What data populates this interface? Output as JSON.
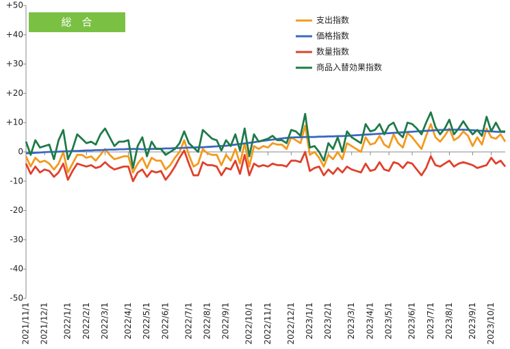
{
  "chart_data": {
    "type": "line",
    "annotation": "総　合",
    "categories": [
      "2021/11/1",
      null,
      null,
      null,
      "2021/12/1",
      null,
      null,
      null,
      null,
      "2022/1/1",
      null,
      null,
      null,
      "2022/2/1",
      null,
      null,
      null,
      "2022/3/1",
      null,
      null,
      null,
      null,
      "2022/4/1",
      null,
      null,
      null,
      "2022/5/1",
      null,
      null,
      null,
      "2022/6/1",
      null,
      null,
      null,
      null,
      "2022/7/1",
      null,
      null,
      null,
      "2022/8/1",
      null,
      null,
      null,
      "2022/9/1",
      null,
      null,
      null,
      null,
      "2022/10/1",
      null,
      null,
      null,
      "2022/11/1",
      null,
      null,
      null,
      null,
      "2022/12/1",
      null,
      null,
      null,
      "2023/1/1",
      null,
      null,
      null,
      "2023/2/1",
      null,
      null,
      null,
      null,
      "2023/3/1",
      null,
      null,
      null,
      "2023/4/1",
      null,
      null,
      null,
      "2023/5/1",
      null,
      null,
      null,
      null,
      "2023/6/1",
      null,
      null,
      null,
      "2023/7/1",
      null,
      null,
      null,
      "2023/8/1",
      null,
      null,
      null,
      null,
      "2023/9/1",
      null,
      null,
      null,
      "2023/10/1",
      null,
      null,
      null
    ],
    "series": [
      {
        "name": "支出指数",
        "color": "#f39a1e",
        "values": [
          -1.5,
          -5,
          -2,
          -3.5,
          -3,
          -4,
          -6,
          -4,
          0,
          -7,
          -4,
          -1,
          -1,
          -2,
          -1.5,
          -3,
          -1,
          1,
          -1,
          -2.5,
          -2,
          -1.5,
          -1.5,
          -7,
          -4,
          -2,
          -5.5,
          -2,
          -3,
          -3,
          -6,
          -4.5,
          -2,
          0,
          4,
          -1,
          -5,
          -4,
          1,
          -0.5,
          -1,
          -1,
          -4.5,
          -1,
          -3,
          1,
          -4,
          3,
          -5,
          2,
          1,
          2,
          1.5,
          3,
          2.5,
          2.5,
          1,
          5,
          4,
          3,
          9,
          -1,
          0,
          -2,
          -5,
          -1,
          -2.5,
          0,
          -2.5,
          3,
          2,
          1,
          0,
          5,
          2.5,
          3,
          5.5,
          2.5,
          1.5,
          6,
          3,
          1.5,
          6.5,
          5,
          3,
          1,
          5.5,
          9.5,
          5,
          3.5,
          5.5,
          8,
          4,
          5,
          7,
          5.5,
          2,
          5,
          2.5,
          8,
          5,
          4.5,
          6,
          3.5
        ]
      },
      {
        "name": "価格指数",
        "color": "#3a68c2",
        "values": [
          -0.5,
          -0.4,
          -0.3,
          -0.2,
          -0.1,
          0,
          0,
          0.1,
          0.2,
          0.2,
          0.3,
          0.3,
          0.4,
          0.5,
          0.5,
          0.6,
          0.6,
          0.7,
          0.8,
          0.8,
          0.9,
          0.9,
          1,
          1,
          1,
          0.9,
          0.9,
          1,
          1.1,
          1.1,
          1.2,
          1.2,
          1.3,
          1.3,
          1.4,
          1.5,
          1.5,
          1.6,
          1.6,
          1.7,
          1.8,
          1.9,
          2,
          2.1,
          2.3,
          2.5,
          2.7,
          2.9,
          3.1,
          3.3,
          3.6,
          3.8,
          4,
          4.2,
          4.4,
          4.6,
          4.8,
          4.9,
          5,
          5,
          5.1,
          5.1,
          5.1,
          5.2,
          5.2,
          5.3,
          5.3,
          5.4,
          5.4,
          5.5,
          5.6,
          5.7,
          5.8,
          5.9,
          6,
          6.1,
          6.2,
          6.3,
          6.4,
          6.5,
          6.6,
          6.7,
          6.8,
          6.9,
          7,
          7.1,
          7.2,
          7.3,
          7.4,
          7.5,
          7.5,
          7.6,
          7.6,
          7.6,
          7.6,
          7.5,
          7.4,
          7.3,
          7.2,
          7.1,
          7,
          6.9,
          6.8,
          6.8
        ]
      },
      {
        "name": "数量指数",
        "color": "#e0402c",
        "values": [
          -4,
          -7.5,
          -5,
          -7,
          -6,
          -6.5,
          -8.5,
          -7,
          -4,
          -9.5,
          -6.5,
          -4,
          -4.5,
          -5,
          -4.5,
          -5.5,
          -5,
          -3.5,
          -5,
          -6,
          -5.5,
          -5,
          -5,
          -10,
          -7,
          -6,
          -8.5,
          -6.5,
          -7,
          -6.5,
          -9.5,
          -7.5,
          -5,
          -2,
          0.5,
          -4,
          -8,
          -8,
          -3.5,
          -4.5,
          -4.5,
          -5,
          -8,
          -5.5,
          -6,
          -3,
          -7.5,
          -1,
          -8,
          -4,
          -5,
          -4.5,
          -5,
          -4,
          -4.5,
          -4.5,
          -5,
          -3,
          -3,
          -3.5,
          0,
          -6.5,
          -5.5,
          -5,
          -8,
          -6,
          -7.5,
          -5.5,
          -7,
          -5,
          -6,
          -6.5,
          -7,
          -4,
          -6.5,
          -6,
          -3.5,
          -6,
          -6.5,
          -3.5,
          -4,
          -5.5,
          -3.5,
          -4,
          -6,
          -8,
          -5.5,
          -1.5,
          -4.5,
          -5,
          -4,
          -3,
          -5,
          -4,
          -3.5,
          -4,
          -4.5,
          -5.5,
          -5,
          -4.5,
          -2,
          -4,
          -3,
          -5
        ]
      },
      {
        "name": "商品入替効果指数",
        "color": "#1e7a48",
        "values": [
          3.5,
          -1,
          4,
          1.5,
          2,
          2.5,
          -2.5,
          4,
          7.5,
          -2.5,
          1,
          6,
          4.5,
          3,
          3.5,
          2.5,
          6,
          8,
          5,
          2,
          3.5,
          3.5,
          4,
          -5.5,
          2,
          5,
          -1.5,
          3.5,
          1,
          1,
          -1,
          0,
          1,
          3,
          7,
          3,
          1.5,
          0,
          7.5,
          6,
          4.5,
          4,
          0.5,
          4,
          2,
          6,
          0.5,
          8,
          -1.5,
          6,
          3.5,
          4,
          4.5,
          5.5,
          4,
          4,
          3,
          7.5,
          7,
          5.5,
          13,
          1.5,
          2,
          0,
          -3,
          3,
          1,
          5,
          0,
          7,
          5,
          4,
          3,
          9.5,
          7,
          7.5,
          9.5,
          6,
          9,
          10,
          6.5,
          5,
          10,
          9.5,
          8,
          6,
          10,
          13.5,
          8.5,
          6,
          8,
          11,
          6,
          8,
          10.5,
          8,
          6,
          7.5,
          5.5,
          12,
          7,
          10,
          7,
          7
        ]
      }
    ],
    "ylim": [
      -50,
      50
    ],
    "yticks": [
      {
        "value": 50,
        "label": "+50"
      },
      {
        "value": 40,
        "label": "+40"
      },
      {
        "value": 30,
        "label": "+30"
      },
      {
        "value": 20,
        "label": "+20"
      },
      {
        "value": 10,
        "label": "+10"
      },
      0,
      -10,
      -20,
      -30,
      -40,
      -50
    ],
    "grid": false,
    "legend": "top"
  }
}
